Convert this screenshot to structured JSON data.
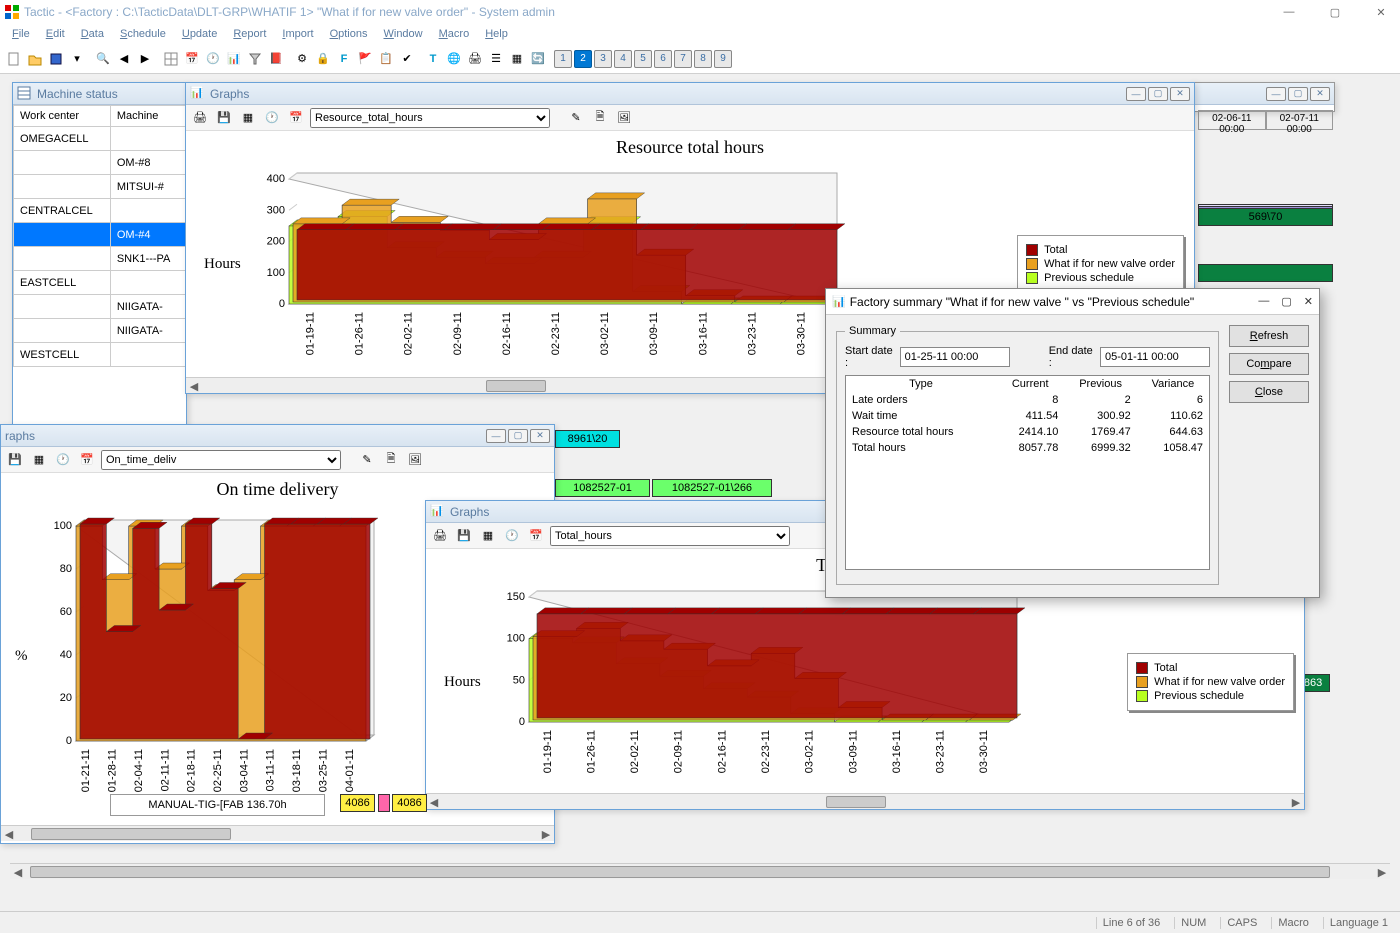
{
  "titlebar": {
    "text": "Tactic - <Factory : C:\\TacticData\\DLT-GRP\\WHATIF 1>   \"What if for new valve order\" - System admin"
  },
  "menu": [
    "File",
    "Edit",
    "Data",
    "Schedule",
    "Update",
    "Report",
    "Import",
    "Options",
    "Window",
    "Macro",
    "Help"
  ],
  "num_buttons": [
    1,
    2,
    3,
    4,
    5,
    6,
    7,
    8,
    9
  ],
  "num_active": 2,
  "machine_status": {
    "title": "Machine status",
    "headers": [
      "Work center",
      "Machine"
    ],
    "rows": [
      {
        "wc": "OMEGACELL",
        "m": "",
        "group": true
      },
      {
        "wc": "",
        "m": "OM-#8"
      },
      {
        "wc": "",
        "m": "MITSUI-#"
      },
      {
        "wc": "CENTRALCEL",
        "m": "",
        "group": true
      },
      {
        "wc": "",
        "m": "OM-#4",
        "sel": true
      },
      {
        "wc": "",
        "m": "SNK1---PA"
      },
      {
        "wc": "EASTCELL",
        "m": "",
        "group": true
      },
      {
        "wc": "",
        "m": "NIIGATA-"
      },
      {
        "wc": "",
        "m": "NIIGATA-"
      },
      {
        "wc": "WESTCELL",
        "m": "",
        "group": true
      }
    ]
  },
  "gantt_headers": [
    "02-06-11 00:00",
    "02-07-11 00:00"
  ],
  "graphs_win": {
    "title": "Graphs",
    "dropdown": "Resource_total_hours",
    "chart": {
      "title": "Resource total hours",
      "ylabel": "Hours",
      "ylim": [
        0,
        400
      ],
      "ytick_step": 100,
      "xcats": [
        "01-19-11",
        "01-26-11",
        "02-02-11",
        "02-09-11",
        "02-16-11",
        "02-23-11",
        "03-02-11",
        "03-09-11",
        "03-16-11",
        "03-23-11",
        "03-30-11"
      ],
      "series_total": {
        "color": "#a00000",
        "label": "Total",
        "values": [
          225,
          225,
          225,
          225,
          225,
          225,
          225,
          225,
          225,
          225,
          225
        ]
      },
      "series_whatif": {
        "color": "#e8a020",
        "label": "What if for new valve order",
        "values": [
          250,
          310,
          255,
          230,
          200,
          250,
          330,
          150,
          20,
          0,
          0
        ]
      },
      "series_prev": {
        "color": "#b8ff20",
        "label": "Previous schedule",
        "values": [
          250,
          280,
          180,
          150,
          130,
          150,
          260,
          40,
          0,
          0,
          0
        ]
      },
      "bg": "#ffffff"
    }
  },
  "delivery_win": {
    "title": "Graphs",
    "dropdown": "On_time_deliv",
    "chart": {
      "title": "On time delivery",
      "ylabel": "%",
      "ylim": [
        0,
        100
      ],
      "ytick_step": 20,
      "xcats": [
        "01-21-11",
        "01-28-11",
        "02-04-11",
        "02-11-11",
        "02-18-11",
        "02-25-11",
        "03-04-11",
        "03-11-11",
        "03-18-11",
        "03-25-11",
        "04-01-11"
      ],
      "series_whatif": {
        "color": "#a00000",
        "label": "What if for new valve order",
        "values": [
          100,
          50,
          98,
          60,
          100,
          70,
          0,
          100,
          100,
          100,
          100
        ]
      },
      "series_prev": {
        "color": "#e8a020",
        "label": "Previous schedule",
        "values": [
          100,
          75,
          100,
          80,
          100,
          70,
          75,
          100,
          100,
          100,
          100
        ]
      }
    }
  },
  "total_win": {
    "title": "Graphs",
    "dropdown": "Total_hours",
    "chart": {
      "title": "Total hours C",
      "ylabel": "Hours",
      "ylim": [
        0,
        150
      ],
      "ytick_step": 50,
      "xcats": [
        "01-19-11",
        "01-26-11",
        "02-02-11",
        "02-09-11",
        "02-16-11",
        "02-23-11",
        "03-02-11",
        "03-09-11",
        "03-16-11",
        "03-23-11",
        "03-30-11"
      ],
      "series_total": {
        "color": "#a00000",
        "label": "Total",
        "values": [
          125,
          125,
          125,
          125,
          125,
          125,
          125,
          125,
          125,
          125,
          125
        ]
      },
      "series_whatif": {
        "color": "#e8a020",
        "label": "What if for new valve order",
        "values": [
          100,
          110,
          95,
          85,
          65,
          80,
          50,
          15,
          0,
          0,
          0
        ]
      },
      "series_prev": {
        "color": "#b8ff20",
        "label": "Previous schedule",
        "values": [
          100,
          95,
          70,
          55,
          40,
          30,
          10,
          0,
          0,
          0,
          0
        ]
      }
    }
  },
  "dialog": {
    "title": "Factory summary \"What if for new valve \" vs \"Previous schedule\"",
    "summary_label": "Summary",
    "start_label": "Start date :",
    "start_value": "01-25-11 00:00",
    "end_label": "End date :",
    "end_value": "05-01-11 00:00",
    "columns": [
      "Type",
      "Current",
      "Previous",
      "Variance"
    ],
    "rows": [
      {
        "t": "Late orders",
        "c": "8",
        "p": "2",
        "v": "6"
      },
      {
        "t": "Wait time",
        "c": "411.54",
        "p": "300.92",
        "v": "110.62"
      },
      {
        "t": "Resource total hours",
        "c": "2414.10",
        "p": "1769.47",
        "v": "644.63"
      },
      {
        "t": "Total hours",
        "c": "8057.78",
        "p": "6999.32",
        "v": "1058.47"
      }
    ],
    "buttons": {
      "refresh": "Refresh",
      "compare": "Compare",
      "close": "Close"
    }
  },
  "gantt_labels": {
    "task1": "569\\70",
    "task2": "8961\\20",
    "task3": "1082527-01",
    "task3b": "1082527-01\\266",
    "manual": "MANUAL-TIG-[FAB 136.70h",
    "task4": "4086",
    "task5": "4086",
    "task6": "0863"
  },
  "statusbar": {
    "line": "Line 6 of 36",
    "num": "NUM",
    "caps": "CAPS",
    "macro": "Macro",
    "lang": "Language 1"
  }
}
